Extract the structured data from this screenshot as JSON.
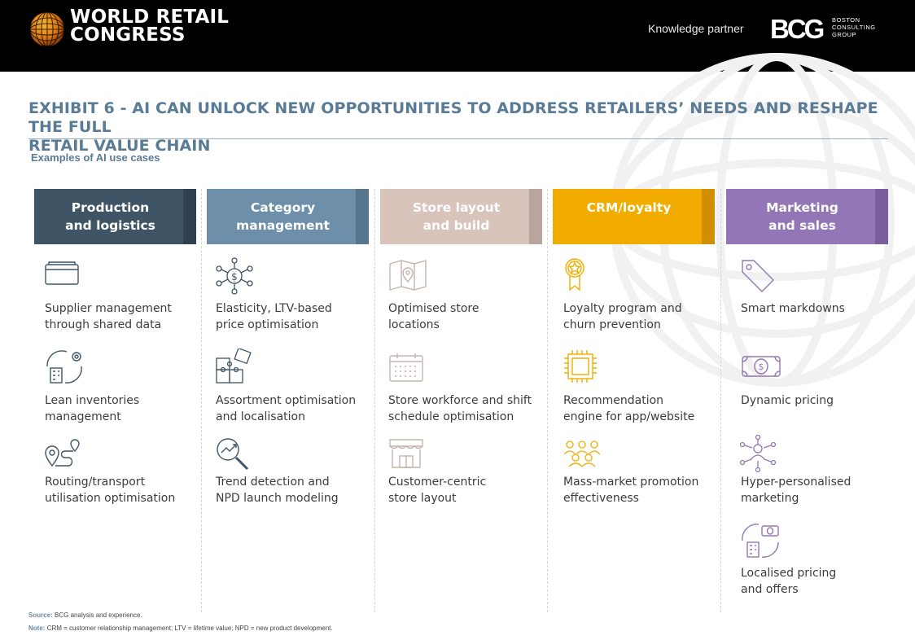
{
  "header": {
    "brand_line1": "WORLD RETAIL",
    "brand_line2": "CONGRESS",
    "partner_label": "Knowledge partner",
    "partner_logo": "BCG",
    "partner_sub": [
      "BOSTON",
      "CONSULTING",
      "GROUP"
    ]
  },
  "title": {
    "line1": "EXHIBIT 6 - AI CAN UNLOCK NEW OPPORTUNITIES TO ADDRESS RETAILERS’ NEEDS AND RESHAPE THE FULL",
    "line2": "RETAIL VALUE CHAIN"
  },
  "subtitle": "Examples of AI use cases",
  "columns": [
    {
      "head": [
        "Production",
        "and logistics"
      ],
      "color": "#3f5566",
      "stripe": "#2f4150",
      "items": [
        {
          "icon": "wallet-icon",
          "lines": [
            "Supplier management",
            "through shared data"
          ]
        },
        {
          "icon": "inventory-cycle-icon",
          "lines": [
            "Lean inventories",
            "management"
          ]
        },
        {
          "icon": "route-icon",
          "lines": [
            "Routing/transport",
            "utilisation optimisation"
          ]
        }
      ]
    },
    {
      "head": [
        "Category",
        "management"
      ],
      "color": "#6d8fa9",
      "stripe": "#55768e",
      "items": [
        {
          "icon": "price-network-icon",
          "lines": [
            "Elasticity, LTV-based",
            "price optimisation"
          ]
        },
        {
          "icon": "puzzle-icon",
          "lines": [
            "Assortment optimisation",
            "and localisation"
          ]
        },
        {
          "icon": "trend-magnifier-icon",
          "lines": [
            "Trend detection and",
            "NPD launch modeling"
          ]
        }
      ]
    },
    {
      "head": [
        "Store layout",
        "and build"
      ],
      "color": "#d8c4bb",
      "stripe": "#b8a69e",
      "items": [
        {
          "icon": "map-pin-icon",
          "lines": [
            "Optimised store",
            "locations"
          ]
        },
        {
          "icon": "calendar-icon",
          "lines": [
            "Store workforce and shift",
            "schedule optimisation"
          ]
        },
        {
          "icon": "storefront-icon",
          "lines": [
            "Customer-centric",
            "store layout"
          ]
        }
      ]
    },
    {
      "head": [
        "CRM/loyalty"
      ],
      "color": "#f2ac00",
      "stripe": "#d18f00",
      "items": [
        {
          "icon": "badge-icon",
          "lines": [
            "Loyalty program and",
            "churn prevention"
          ]
        },
        {
          "icon": "chip-icon",
          "lines": [
            "Recommendation",
            "engine for app/website"
          ]
        },
        {
          "icon": "crowd-icon",
          "lines": [
            "Mass-market promotion",
            "effectiveness"
          ]
        }
      ]
    },
    {
      "head": [
        "Marketing",
        "and sales"
      ],
      "color": "#9376b5",
      "stripe": "#7a5e9c",
      "items": [
        {
          "icon": "price-tag-icon",
          "lines": [
            "Smart markdowns"
          ]
        },
        {
          "icon": "banknote-icon",
          "lines": [
            "Dynamic pricing"
          ]
        },
        {
          "icon": "person-network-icon",
          "lines": [
            "Hyper-personalised",
            "marketing"
          ]
        },
        {
          "icon": "local-pricing-icon",
          "lines": [
            "Localised pricing",
            "and offers"
          ]
        }
      ]
    }
  ],
  "footer": {
    "source_label": "Source:",
    "source_text": "BCG analysis and experience.",
    "note_label": "Note:",
    "note_text": "CRM = customer relationship management; LTV = lifetime value; NPD = new product development."
  },
  "colors": {
    "title": "#5a7b96",
    "production": "#3f5566",
    "category": "#6d8fa9",
    "store": "#d8c4bb",
    "crm": "#f2ac00",
    "marketing": "#9376b5"
  }
}
